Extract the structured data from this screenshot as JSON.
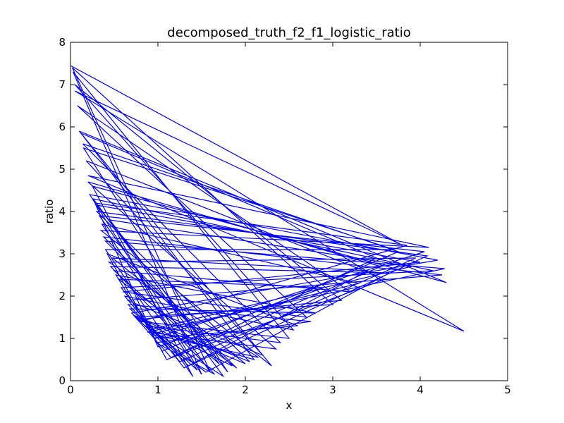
{
  "chart_data": {
    "type": "line",
    "title": "decomposed_truth_f2_f1_logistic_ratio",
    "xlabel": "x",
    "ylabel": "ratio",
    "xlim": [
      0,
      5
    ],
    "ylim": [
      0,
      8
    ],
    "xticks": [
      "0",
      "1",
      "2",
      "3",
      "4",
      "5"
    ],
    "yticks": [
      "0",
      "1",
      "2",
      "3",
      "4",
      "5",
      "6",
      "7",
      "8"
    ],
    "grid": false,
    "line_color": "#0000ff",
    "series": [
      {
        "values": [
          [
            0.0,
            7.45
          ],
          [
            3.8,
            3.2
          ],
          [
            0.05,
            6.85
          ],
          [
            4.5,
            1.17
          ],
          [
            0.2,
            4.85
          ],
          [
            4.1,
            3.15
          ],
          [
            0.35,
            3.55
          ],
          [
            2.3,
            0.35
          ],
          [
            0.1,
            5.9
          ],
          [
            4.3,
            2.32
          ],
          [
            0.25,
            4.6
          ],
          [
            1.4,
            0.1
          ],
          [
            0.4,
            3.1
          ],
          [
            3.7,
            3.1
          ],
          [
            0.15,
            5.5
          ],
          [
            1.8,
            0.2
          ],
          [
            0.3,
            4.15
          ],
          [
            4.0,
            2.8
          ],
          [
            0.6,
            2.1
          ],
          [
            2.7,
            1.5
          ],
          [
            0.08,
            6.5
          ],
          [
            3.2,
            2.1
          ],
          [
            0.5,
            2.6
          ],
          [
            1.7,
            0.4
          ],
          [
            0.45,
            3.8
          ],
          [
            3.9,
            2.7
          ],
          [
            0.9,
            1.2
          ],
          [
            2.1,
            0.5
          ],
          [
            0.12,
            5.85
          ],
          [
            3.5,
            2.9
          ],
          [
            1.2,
            0.6
          ],
          [
            0.7,
            1.6
          ],
          [
            4.2,
            2.85
          ],
          [
            0.22,
            4.4
          ],
          [
            1.5,
            0.15
          ],
          [
            0.03,
            7.3
          ],
          [
            2.5,
            1.0
          ],
          [
            0.8,
            1.4
          ],
          [
            3.85,
            3.2
          ],
          [
            0.28,
            4.2
          ],
          [
            1.0,
            0.8
          ],
          [
            2.9,
            2.2
          ],
          [
            0.55,
            2.4
          ],
          [
            1.9,
            0.3
          ],
          [
            0.38,
            3.4
          ],
          [
            4.25,
            2.5
          ],
          [
            0.65,
            1.9
          ],
          [
            2.2,
            0.6
          ],
          [
            0.18,
            5.2
          ],
          [
            3.6,
            2.4
          ],
          [
            1.1,
            0.5
          ],
          [
            0.42,
            3.0
          ],
          [
            2.6,
            1.3
          ],
          [
            0.95,
            1.0
          ],
          [
            4.05,
            3.05
          ],
          [
            0.33,
            3.9
          ],
          [
            1.6,
            0.2
          ],
          [
            0.02,
            7.4
          ],
          [
            3.0,
            1.8
          ],
          [
            0.75,
            1.5
          ],
          [
            2.0,
            0.4
          ],
          [
            0.48,
            2.9
          ],
          [
            3.4,
            2.6
          ],
          [
            1.3,
            0.3
          ],
          [
            0.58,
            2.2
          ],
          [
            4.15,
            2.6
          ],
          [
            0.26,
            4.3
          ],
          [
            1.75,
            0.1
          ],
          [
            0.85,
            1.3
          ],
          [
            2.4,
            0.9
          ],
          [
            0.14,
            5.6
          ],
          [
            3.75,
            3.05
          ],
          [
            1.05,
            0.7
          ],
          [
            0.52,
            2.5
          ],
          [
            2.8,
            1.6
          ],
          [
            0.68,
            1.7
          ],
          [
            1.45,
            0.25
          ],
          [
            0.36,
            3.7
          ],
          [
            3.3,
            2.3
          ],
          [
            0.92,
            1.1
          ],
          [
            2.15,
            0.55
          ],
          [
            0.44,
            2.8
          ],
          [
            3.95,
            2.9
          ],
          [
            1.25,
            0.45
          ],
          [
            0.62,
            2.0
          ],
          [
            2.55,
            1.2
          ],
          [
            0.05,
            7.0
          ],
          [
            3.1,
            1.9
          ],
          [
            0.78,
            1.45
          ],
          [
            1.85,
            0.35
          ],
          [
            0.4,
            3.3
          ],
          [
            4.28,
            2.65
          ],
          [
            0.88,
            1.15
          ],
          [
            2.35,
            0.75
          ],
          [
            0.2,
            4.7
          ],
          [
            3.55,
            2.7
          ],
          [
            1.15,
            0.55
          ],
          [
            0.72,
            1.55
          ],
          [
            2.05,
            0.45
          ],
          [
            0.3,
            4.0
          ],
          [
            4.08,
            2.95
          ],
          [
            1.35,
            0.35
          ],
          [
            0.66,
            1.8
          ],
          [
            2.75,
            1.4
          ],
          [
            0.98,
            0.9
          ],
          [
            1.65,
            0.15
          ],
          [
            0.46,
            2.7
          ],
          [
            3.65,
            2.55
          ],
          [
            1.55,
            0.2
          ],
          [
            0.82,
            1.35
          ]
        ]
      }
    ]
  }
}
